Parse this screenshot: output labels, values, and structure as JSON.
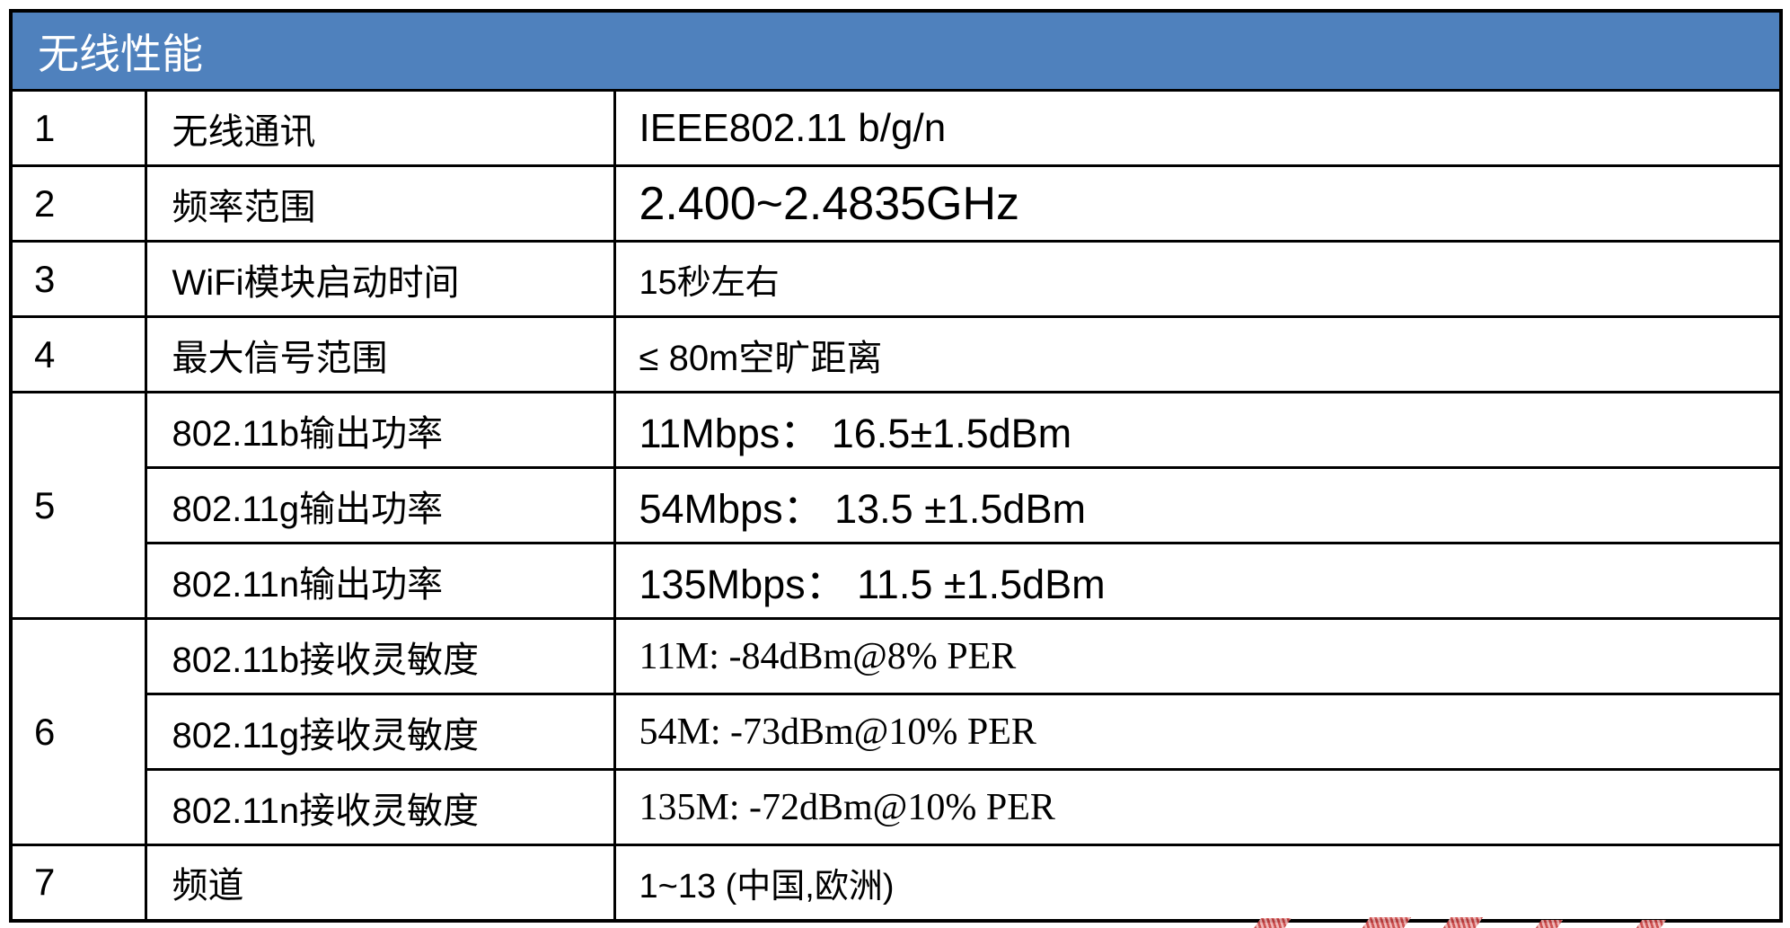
{
  "table": {
    "title": "无线性能"
  },
  "colors": {
    "header_bg": "#4f81bd",
    "header_text": "#ffffff",
    "border": "#000000",
    "watermark_red": "#c84040"
  },
  "rows": [
    {
      "num": "1",
      "label": "无线通讯",
      "value": "IEEE802.11 b/g/n"
    },
    {
      "num": "2",
      "label": "频率范围",
      "value": "2.400~2.4835GHz"
    },
    {
      "num": "3",
      "label": "WiFi模块启动时间",
      "value": "15秒左右"
    },
    {
      "num": "4",
      "label": "最大信号范围",
      "value": "≤ 80m空旷距离"
    },
    {
      "num": "5",
      "label": "802.11b输出功率",
      "value": "11Mbps： 16.5±1.5dBm"
    },
    {
      "label": "802.11g输出功率",
      "value": "54Mbps： 13.5 ±1.5dBm"
    },
    {
      "label": "802.11n输出功率",
      "value": "135Mbps： 11.5 ±1.5dBm"
    },
    {
      "num": "6",
      "label": "802.11b接收灵敏度",
      "value": "11M: -84dBm@8% PER"
    },
    {
      "label": "802.11g接收灵敏度",
      "value": "54M: -73dBm@10% PER"
    },
    {
      "label": "802.11n接收灵敏度",
      "value": "135M: -72dBm@10% PER"
    },
    {
      "num": "7",
      "label": "频道",
      "value": "1~13 (中国,欧洲)"
    }
  ]
}
